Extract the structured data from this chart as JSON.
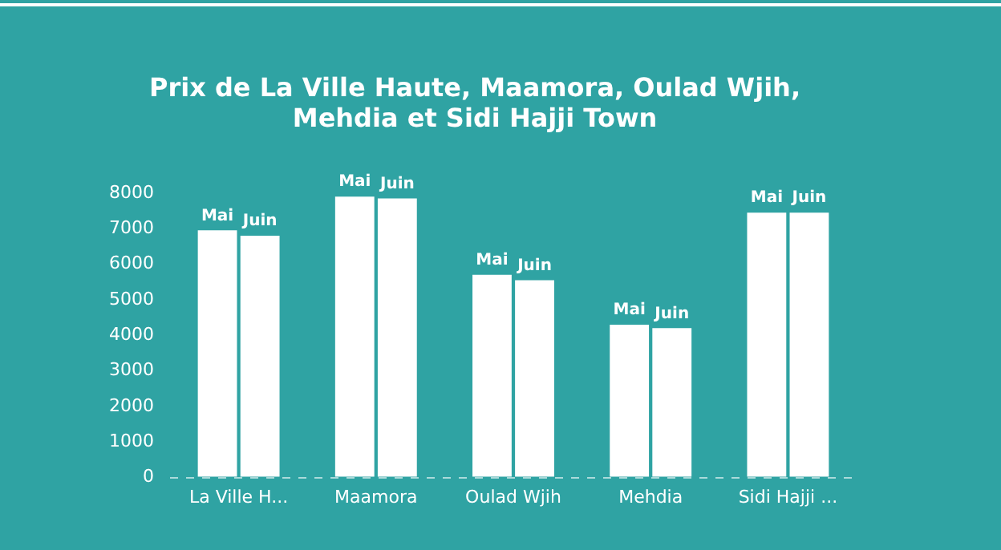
{
  "chart_data": {
    "type": "bar",
    "title": "Prix de La Ville Haute, Maamora, Oulad Wjih, Mehdia et Sidi Hajji Town",
    "categories": [
      "La Ville H...",
      "Maamora",
      "Oulad Wjih",
      "Mehdia",
      "Sidi Hajji ..."
    ],
    "series": [
      {
        "name": "Mai",
        "color": "#ffffff",
        "values": [
          6950,
          7900,
          5700,
          4300,
          7450
        ]
      },
      {
        "name": "Juin",
        "color": "#ffffff",
        "values": [
          6800,
          7850,
          5550,
          4200,
          7450
        ]
      }
    ],
    "ylim": [
      0,
      8000
    ],
    "yticks": [
      0,
      1000,
      2000,
      3000,
      4000,
      5000,
      6000,
      7000,
      8000
    ],
    "grid": false,
    "legend": false
  }
}
